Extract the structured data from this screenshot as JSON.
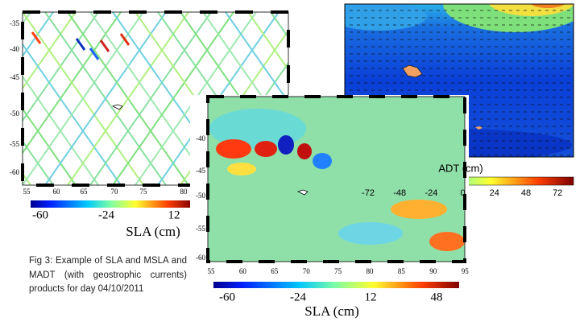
{
  "panel_sla_tracks": {
    "y_ticks": [
      -35,
      -40,
      -45,
      -50,
      -55,
      -60
    ],
    "x_ticks": [
      55,
      60,
      65,
      70,
      75,
      80
    ],
    "colorbar_ticks": [
      -60,
      -24,
      12
    ],
    "colorbar_label": "SLA (cm)"
  },
  "panel_msla": {
    "y_ticks": [
      -40,
      -45,
      -50,
      -55,
      -60
    ],
    "x_ticks": [
      55,
      60,
      65,
      70,
      75,
      80,
      85,
      90,
      95
    ],
    "colorbar_ticks": [
      -60,
      -24,
      12,
      48
    ],
    "colorbar_label": "SLA (cm)"
  },
  "panel_madt": {
    "colorbar_label": "ADT (cm)",
    "colorbar_ticks": [
      -72,
      -48,
      -24,
      0,
      24,
      48,
      72
    ]
  },
  "caption": "Fig 3: Example of SLA and MSLA and MADT (with geostrophic currents) products for day 04/10/2011"
}
